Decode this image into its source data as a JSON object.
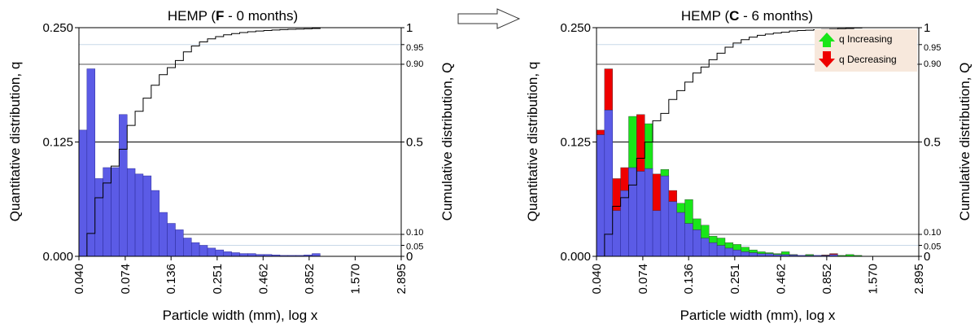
{
  "chart_data": [
    {
      "type": "bar",
      "title_prefix": "HEMP (",
      "title_bold": "F",
      "title_suffix": " - 0 months)",
      "xlabel": "Particle width (mm), log x",
      "ylabel": "Quantitative distribution, q",
      "y2label": "Cumulative distribution, Q",
      "x_scale": "log",
      "xlim": [
        0.04,
        2.895
      ],
      "ylim": [
        0,
        0.25
      ],
      "x_ticks": [
        "0.040",
        "0.074",
        "0.136",
        "0.251",
        "0.462",
        "0.852",
        "1.570",
        "2.895"
      ],
      "y_ticks": [
        "0.000",
        "0.125",
        "0.250"
      ],
      "y2_ticks": [
        "0",
        "0.05",
        "0.10",
        "0.5",
        "0.90",
        "0.95",
        "1"
      ],
      "bins": [
        {
          "from": 0.04,
          "to": 0.0445,
          "q": 0.138
        },
        {
          "from": 0.0445,
          "to": 0.0495,
          "q": 0.205
        },
        {
          "from": 0.0495,
          "to": 0.0551,
          "q": 0.085
        },
        {
          "from": 0.0551,
          "to": 0.0613,
          "q": 0.097
        },
        {
          "from": 0.0613,
          "to": 0.0682,
          "q": 0.097
        },
        {
          "from": 0.0682,
          "to": 0.0759,
          "q": 0.155
        },
        {
          "from": 0.0759,
          "to": 0.0844,
          "q": 0.096
        },
        {
          "from": 0.0844,
          "to": 0.0939,
          "q": 0.09
        },
        {
          "from": 0.0939,
          "to": 0.1045,
          "q": 0.088
        },
        {
          "from": 0.1045,
          "to": 0.1163,
          "q": 0.072
        },
        {
          "from": 0.1163,
          "to": 0.1294,
          "q": 0.048
        },
        {
          "from": 0.1294,
          "to": 0.144,
          "q": 0.036
        },
        {
          "from": 0.144,
          "to": 0.1602,
          "q": 0.029
        },
        {
          "from": 0.1602,
          "to": 0.1783,
          "q": 0.02
        },
        {
          "from": 0.1783,
          "to": 0.1984,
          "q": 0.015
        },
        {
          "from": 0.1984,
          "to": 0.2208,
          "q": 0.012
        },
        {
          "from": 0.2208,
          "to": 0.2457,
          "q": 0.009
        },
        {
          "from": 0.2457,
          "to": 0.2734,
          "q": 0.007
        },
        {
          "from": 0.2734,
          "to": 0.3042,
          "q": 0.005
        },
        {
          "from": 0.3042,
          "to": 0.3385,
          "q": 0.004
        },
        {
          "from": 0.3385,
          "to": 0.3767,
          "q": 0.003
        },
        {
          "from": 0.3767,
          "to": 0.4192,
          "q": 0.003
        },
        {
          "from": 0.4192,
          "to": 0.4665,
          "q": 0.002
        },
        {
          "from": 0.4665,
          "to": 0.5191,
          "q": 0.002
        },
        {
          "from": 0.5191,
          "to": 0.5777,
          "q": 0.0015
        },
        {
          "from": 0.5777,
          "to": 0.6429,
          "q": 0.001
        },
        {
          "from": 0.6429,
          "to": 0.7154,
          "q": 0.001
        },
        {
          "from": 0.7154,
          "to": 0.7961,
          "q": 0.001
        },
        {
          "from": 0.7961,
          "to": 0.8859,
          "q": 0.0015
        },
        {
          "from": 0.8859,
          "to": 0.9858,
          "q": 0.003
        }
      ]
    },
    {
      "type": "bar",
      "title_prefix": "HEMP (",
      "title_bold": "C",
      "title_suffix": " - 6 months)",
      "xlabel": "Particle width (mm), log x",
      "ylabel": "Quantitative distribution, q",
      "y2label": "Cumulative distribution, Q",
      "x_scale": "log",
      "xlim": [
        0.04,
        2.895
      ],
      "ylim": [
        0,
        0.25
      ],
      "x_ticks": [
        "0.040",
        "0.074",
        "0.136",
        "0.251",
        "0.462",
        "0.852",
        "1.570",
        "2.895"
      ],
      "y_ticks": [
        "0.000",
        "0.125",
        "0.250"
      ],
      "y2_ticks": [
        "0",
        "0.05",
        "0.10",
        "0.5",
        "0.90",
        "0.95",
        "1"
      ],
      "legend": [
        {
          "label": "q Increasing",
          "color": "#19e619"
        },
        {
          "label": "q Decreasing",
          "color": "#ee0000"
        }
      ],
      "legend_position": "top-right",
      "bins": [
        {
          "from": 0.04,
          "to": 0.0445,
          "q_before": 0.138,
          "q_after": 0.133
        },
        {
          "from": 0.0445,
          "to": 0.0495,
          "q_before": 0.205,
          "q_after": 0.16
        },
        {
          "from": 0.0495,
          "to": 0.0551,
          "q_before": 0.085,
          "q_after": 0.05
        },
        {
          "from": 0.0551,
          "to": 0.0613,
          "q_before": 0.097,
          "q_after": 0.072
        },
        {
          "from": 0.0613,
          "to": 0.0682,
          "q_before": 0.097,
          "q_after": 0.153
        },
        {
          "from": 0.0682,
          "to": 0.0759,
          "q_before": 0.155,
          "q_after": 0.093
        },
        {
          "from": 0.0759,
          "to": 0.0844,
          "q_before": 0.096,
          "q_after": 0.145
        },
        {
          "from": 0.0844,
          "to": 0.0939,
          "q_before": 0.09,
          "q_after": 0.05
        },
        {
          "from": 0.0939,
          "to": 0.1045,
          "q_before": 0.088,
          "q_after": 0.095
        },
        {
          "from": 0.1045,
          "to": 0.1163,
          "q_before": 0.072,
          "q_after": 0.06
        },
        {
          "from": 0.1163,
          "to": 0.1294,
          "q_before": 0.048,
          "q_after": 0.058
        },
        {
          "from": 0.1294,
          "to": 0.144,
          "q_before": 0.036,
          "q_after": 0.062
        },
        {
          "from": 0.144,
          "to": 0.1602,
          "q_before": 0.029,
          "q_after": 0.041
        },
        {
          "from": 0.1602,
          "to": 0.1783,
          "q_before": 0.02,
          "q_after": 0.034
        },
        {
          "from": 0.1783,
          "to": 0.1984,
          "q_before": 0.015,
          "q_after": 0.022
        },
        {
          "from": 0.1984,
          "to": 0.2208,
          "q_before": 0.012,
          "q_after": 0.02
        },
        {
          "from": 0.2208,
          "to": 0.2457,
          "q_before": 0.009,
          "q_after": 0.015
        },
        {
          "from": 0.2457,
          "to": 0.2734,
          "q_before": 0.007,
          "q_after": 0.013
        },
        {
          "from": 0.2734,
          "to": 0.3042,
          "q_before": 0.005,
          "q_after": 0.01
        },
        {
          "from": 0.3042,
          "to": 0.3385,
          "q_before": 0.004,
          "q_after": 0.007
        },
        {
          "from": 0.3385,
          "to": 0.3767,
          "q_before": 0.003,
          "q_after": 0.005
        },
        {
          "from": 0.3767,
          "to": 0.4192,
          "q_before": 0.003,
          "q_after": 0.004
        },
        {
          "from": 0.4192,
          "to": 0.4665,
          "q_before": 0.002,
          "q_after": 0.003
        },
        {
          "from": 0.4665,
          "to": 0.5191,
          "q_before": 0.002,
          "q_after": 0.005
        },
        {
          "from": 0.5191,
          "to": 0.5777,
          "q_before": 0.0015,
          "q_after": 0.002
        },
        {
          "from": 0.5777,
          "to": 0.6429,
          "q_before": 0.001,
          "q_after": 0.001
        },
        {
          "from": 0.6429,
          "to": 0.7154,
          "q_before": 0.001,
          "q_after": 0.002
        },
        {
          "from": 0.7154,
          "to": 0.7961,
          "q_before": 0.001,
          "q_after": 0.001
        },
        {
          "from": 0.7961,
          "to": 0.8859,
          "q_before": 0.0015,
          "q_after": 0.001
        },
        {
          "from": 0.8859,
          "to": 0.9858,
          "q_before": 0.003,
          "q_after": 0.002
        },
        {
          "from": 0.9858,
          "to": 1.097,
          "q_before": 0,
          "q_after": 0.001
        },
        {
          "from": 1.097,
          "to": 1.2209,
          "q_before": 0,
          "q_after": 0.002
        },
        {
          "from": 1.2209,
          "to": 1.3587,
          "q_before": 0,
          "q_after": 0.001
        }
      ]
    }
  ],
  "colors": {
    "base_bar": "#5b5be6",
    "increase": "#19e619",
    "decrease": "#ee0000",
    "legend_bg": "#f7e8dc"
  },
  "arrow_icon": "right-arrow-icon"
}
